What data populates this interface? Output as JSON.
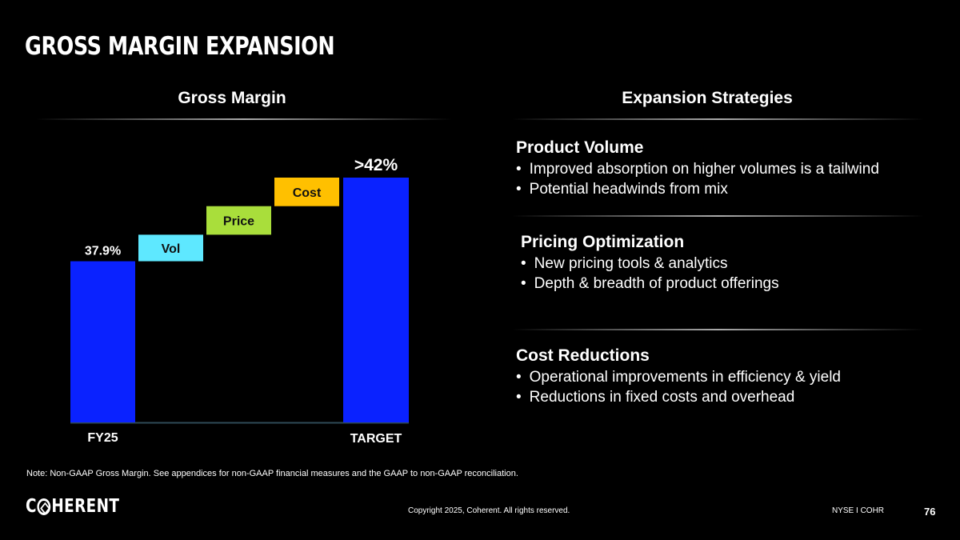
{
  "slide": {
    "title": "GROSS MARGIN EXPANSION",
    "page_number": "76"
  },
  "left_panel": {
    "heading": "Gross Margin"
  },
  "right_panel": {
    "heading": "Expansion Strategies",
    "sections": [
      {
        "title": "Product Volume",
        "bullets": [
          "Improved absorption on higher volumes is a tailwind",
          "Potential headwinds from mix"
        ]
      },
      {
        "title": "Pricing Optimization",
        "bullets": [
          "New pricing tools & analytics",
          "Depth & breadth of product offerings"
        ]
      },
      {
        "title": "Cost Reductions",
        "bullets": [
          "Operational improvements in efficiency & yield",
          "Reductions in fixed costs and overhead"
        ]
      }
    ]
  },
  "chart_data": {
    "type": "bar",
    "subtype": "waterfall",
    "title": "Gross Margin",
    "unit": "%",
    "ylim": [
      30,
      43
    ],
    "start": {
      "label": "FY25",
      "value": 37.9,
      "value_label": "37.9%"
    },
    "steps": [
      {
        "label": "Vol",
        "from": 37.9,
        "to": 39.2
      },
      {
        "label": "Price",
        "from": 39.2,
        "to": 40.6
      },
      {
        "label": "Cost",
        "from": 40.6,
        "to": 42.0
      }
    ],
    "end": {
      "label": "TARGET",
      "value": 42.0,
      "value_label": ">42%"
    }
  },
  "colors": {
    "background": "#000000",
    "total_bar": "#0a22ff",
    "vol_bar": "#5ee8ff",
    "price_bar": "#a9de3b",
    "cost_bar": "#ffc000",
    "step_text": "#111111",
    "axis": "#2f4a57"
  },
  "footer": {
    "note": "Note: Non-GAAP Gross Margin. See appendices for non-GAAP financial measures and the GAAP to non-GAAP reconciliation.",
    "logo_prefix": "C",
    "logo_suffix": "HERENT",
    "copyright": "Copyright 2025, Coherent. All rights reserved.",
    "ticker": "NYSE I COHR"
  }
}
